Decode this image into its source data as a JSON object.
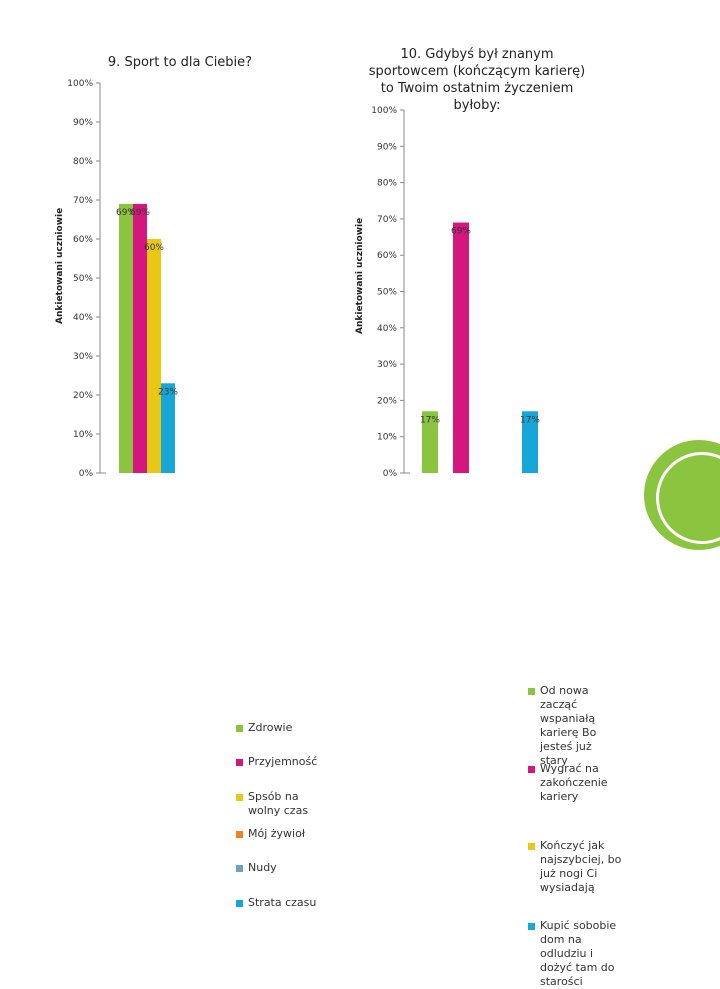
{
  "chart_data": [
    {
      "type": "bar",
      "title": "9. Sport to dla Ciebie?",
      "ylabel": "Ankietowani uczniowie",
      "ylim": [
        0,
        100
      ],
      "yticks": [
        "0%",
        "10%",
        "20%",
        "30%",
        "40%",
        "50%",
        "60%",
        "70%",
        "80%",
        "90%",
        "100%"
      ],
      "series": [
        {
          "name": "Zdrowie",
          "value": 69,
          "label": "69%",
          "color": "#8bc53f"
        },
        {
          "name": "Przyjemność",
          "value": 69,
          "label": "69%",
          "color": "#d6167f"
        },
        {
          "name": "Spsób na wolny czas",
          "value": 60,
          "label": "60%",
          "color": "#e8c814"
        },
        {
          "name": "Mój żywioł",
          "value": 0,
          "label": "",
          "color": "#f07f1e"
        },
        {
          "name": "Nudy",
          "value": 0,
          "label": "",
          "color": "#6fa0c8"
        },
        {
          "name": "Strata czasu",
          "value": 23,
          "label": "23%",
          "color": "#17a6d8"
        }
      ]
    },
    {
      "type": "bar",
      "title": "10. Gdybyś był znanym sportowcem (kończącym karierę) to Twoim ostatnim życzeniem byłoby:",
      "ylabel": "Ankietowani uczniowie",
      "ylim": [
        0,
        100
      ],
      "yticks": [
        "0%",
        "10%",
        "20%",
        "30%",
        "40%",
        "50%",
        "60%",
        "70%",
        "80%",
        "90%",
        "100%"
      ],
      "series": [
        {
          "name": "Od nowa zacząć wspaniałą karierę Bo jesteś już stary",
          "value": 17,
          "label": "17%",
          "color": "#8bc53f"
        },
        {
          "name": "Wygrać na zakończenie kariery",
          "value": 69,
          "label": "69%",
          "color": "#d6167f"
        },
        {
          "name": "Kończyć jak najszybciej, bo już nogi Ci wysiadają",
          "value": 0,
          "label": "",
          "color": "#e8c814"
        },
        {
          "name": "Kupić sobobie dom na odludziu i dożyć tam do starości",
          "value": 17,
          "label": "17%",
          "color": "#17a6d8"
        }
      ]
    }
  ]
}
